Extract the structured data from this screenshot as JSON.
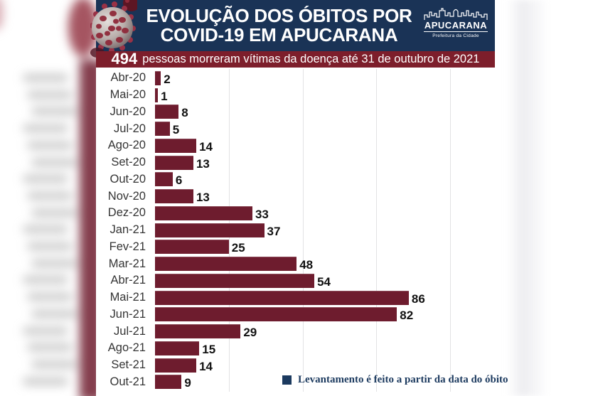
{
  "header": {
    "title_line1": "EVOLUÇÃO DOS ÓBITOS POR",
    "title_line2": "COVID-19 EM APUCARANA",
    "logo": {
      "name": "APUCARANA",
      "tagline": "Prefeitura da Cidade"
    }
  },
  "subtitle": {
    "number": "494",
    "text": "pessoas morreram vítimas da doença até 31 de outubro de 2021"
  },
  "legend": {
    "label": "Levantamento é feito a partir da data do óbito"
  },
  "chart_data": {
    "type": "bar",
    "orientation": "horizontal",
    "title": "EVOLUÇÃO DOS ÓBITOS POR COVID-19 EM APUCARANA",
    "subtitle": "494 pessoas morreram vítimas da doença até 31 de outubro de 2021",
    "categories": [
      "Abr-20",
      "Mai-20",
      "Jun-20",
      "Jul-20",
      "Ago-20",
      "Set-20",
      "Out-20",
      "Nov-20",
      "Dez-20",
      "Jan-21",
      "Fev-21",
      "Mar-21",
      "Abr-21",
      "Mai-21",
      "Jun-21",
      "Jul-21",
      "Ago-21",
      "Set-21",
      "Out-21"
    ],
    "values": [
      2,
      1,
      8,
      5,
      14,
      13,
      6,
      13,
      33,
      37,
      25,
      48,
      54,
      86,
      82,
      29,
      15,
      14,
      9
    ],
    "total": 494,
    "xlim": [
      0,
      100
    ],
    "gridlines": [
      25,
      50,
      75,
      100
    ],
    "grid": true,
    "data_labels": true,
    "legend_position": "bottom-right",
    "bar_color": "#6e1c2e"
  },
  "colors": {
    "header_bg": "#1a3356",
    "subtitle_bg": "#7d1e2b",
    "bar": "#6e1c2e",
    "gridline": "#e2e2e4",
    "legend_square": "#1c3a5f",
    "legend_text": "#1c3a5f",
    "category_label": "#343434",
    "value_label": "#121212"
  }
}
